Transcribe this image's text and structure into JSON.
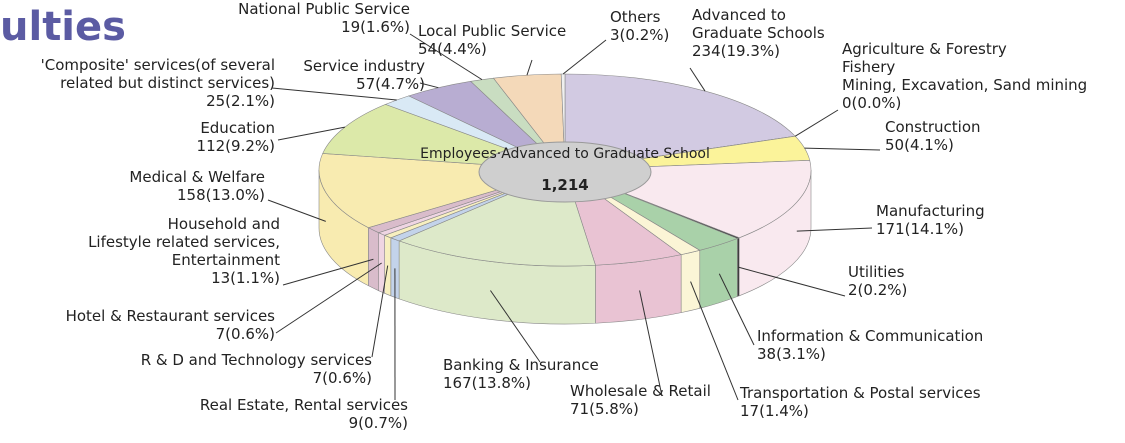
{
  "chart_data": {
    "type": "pie3d",
    "title": "ulties",
    "center_label": "Employees·Advanced to Graduate School",
    "center_value": "1,214",
    "categories": [
      "Advanced to\nGraduate Schools",
      "Agriculture & Forestry\nFishery\nMining, Excavation, Sand mining",
      "Construction",
      "Manufacturing",
      "Utilities",
      "Information & Communication",
      "Transportation & Postal services",
      "Wholesale & Retail",
      "Banking & Insurance",
      "Real Estate, Rental services",
      "R & D and Technology services",
      "Hotel & Restaurant services",
      "Household and\nLifestyle related services,\nEntertainment",
      "Medical & Welfare",
      "Education",
      "'Composite' services(of several\nrelated but distinct services)",
      "Service industry",
      "National Public Service",
      "Local Public Service",
      "Others"
    ],
    "values": [
      234,
      0,
      50,
      171,
      2,
      38,
      17,
      71,
      167,
      9,
      7,
      7,
      13,
      158,
      112,
      25,
      57,
      19,
      54,
      3
    ],
    "value_labels": [
      "234(19.3%)",
      "0(0.0%)",
      "50(4.1%)",
      "171(14.1%)",
      "2(0.2%)",
      "38(3.1%)",
      "17(1.4%)",
      "71(5.8%)",
      "167(13.8%)",
      "9(0.7%)",
      "7(0.6%)",
      "7(0.6%)",
      "13(1.1%)",
      "158(13.0%)",
      "112(9.2%)",
      "25(2.1%)",
      "57(4.7%)",
      "19(1.6%)",
      "54(4.4%)",
      "3(0.2%)"
    ],
    "colors": [
      "#d2cae2",
      "#c8e0c0",
      "#fbf39a",
      "#f9e9ef",
      "#333333",
      "#a9d1a9",
      "#fbf5d6",
      "#e9c3d3",
      "#dde9c9",
      "#c3d3ea",
      "#f7efbf",
      "#efd5e3",
      "#d9bccb",
      "#f8ebb0",
      "#dce9a9",
      "#d9e9f5",
      "#b8add2",
      "#c9ddc1",
      "#f4d9b9",
      "#efefef"
    ]
  }
}
